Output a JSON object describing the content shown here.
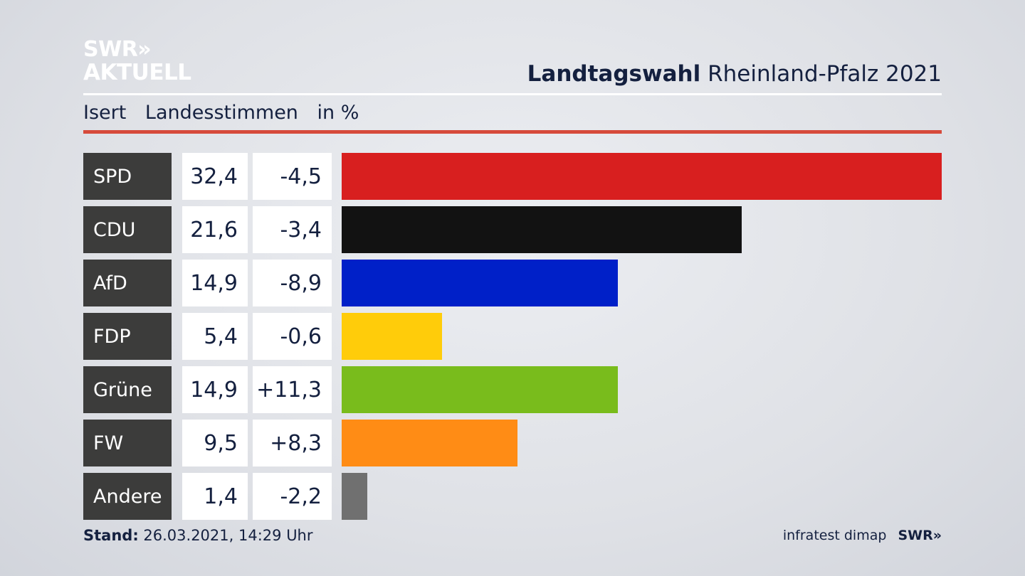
{
  "logo": {
    "line1": "SWR»",
    "line2": "AKTUELL"
  },
  "header": {
    "title_bold": "Landtagswahl",
    "title_rest": "Rheinland-Pfalz 2021"
  },
  "subtitle": {
    "place": "Isert",
    "measure": "Landesstimmen",
    "unit": "in %"
  },
  "chart_data": {
    "type": "bar",
    "orientation": "horizontal",
    "categories": [
      "SPD",
      "CDU",
      "AfD",
      "FDP",
      "Grüne",
      "FW",
      "Andere"
    ],
    "values": [
      "32,4",
      "21,6",
      "14,9",
      "5,4",
      "14,9",
      "9,5",
      "1,4"
    ],
    "values_numeric": [
      32.4,
      21.6,
      14.9,
      5.4,
      14.9,
      9.5,
      1.4
    ],
    "changes": [
      "-4,5",
      "-3,4",
      "-8,9",
      "-0,6",
      "+11,3",
      "+8,3",
      "-2,2"
    ],
    "colors": [
      "#d81f1f",
      "#121212",
      "#0020c8",
      "#ffcc0a",
      "#79bc1c",
      "#ff8c15",
      "#707070"
    ],
    "xlim": [
      0,
      32.4
    ],
    "grid": false
  },
  "footer": {
    "stand_label": "Stand:",
    "stand_value": "26.03.2021, 14:29 Uhr",
    "source": "infratest dimap",
    "brand": "SWR»"
  }
}
